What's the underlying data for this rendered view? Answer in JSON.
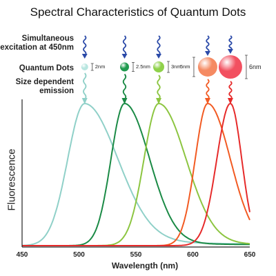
{
  "title": "Spectral Characteristics of Quantum Dots",
  "row_labels": {
    "excitation_line1": "Simultaneous",
    "excitation_line2": "excitation at 450nm",
    "quantum_dots": "Quantum Dots",
    "emission_line1": "Size dependent",
    "emission_line2": "emission"
  },
  "axis": {
    "ylabel": "Fluorescence",
    "xlabel": "Wavelength (nm)",
    "xlim": [
      450,
      650
    ]
  },
  "chart_data": {
    "type": "line",
    "title": "Spectral Characteristics of Quantum Dots",
    "xlabel": "Wavelength (nm)",
    "ylabel": "Fluorescence",
    "xlim": [
      450,
      650
    ],
    "ylim": [
      0,
      1
    ],
    "grid": false,
    "xticks": [
      450,
      500,
      550,
      600,
      650
    ],
    "series": [
      {
        "name": "2nm",
        "size_label": "2nm",
        "peak": 505,
        "width_left": 15,
        "width_right": 29,
        "floor": 0.04,
        "color": "#8fd0c8",
        "start": 450
      },
      {
        "name": "2.5nm",
        "size_label": "2.5nm",
        "peak": 540,
        "width_left": 12,
        "width_right": 22,
        "floor": 0.02,
        "color": "#1a8a45",
        "start": 450
      },
      {
        "name": "3nm",
        "size_label": "3nm",
        "peak": 570,
        "width_left": 13,
        "width_right": 24,
        "floor": 0.02,
        "color": "#8cc540",
        "start": 450
      },
      {
        "name": "5nm",
        "size_label": "5nm",
        "peak": 613,
        "width_left": 11,
        "width_right": 20,
        "floor": 0.0,
        "color": "#f25a22",
        "start": 450
      },
      {
        "name": "6nm",
        "size_label": "6nm",
        "peak": 633,
        "width_left": 12,
        "width_right": 10,
        "floor": 0.0,
        "color": "#e62a2a",
        "start": 450
      }
    ]
  },
  "dots": [
    {
      "name": "2nm",
      "size_label": "2nm",
      "color": "#b8e6e0"
    },
    {
      "name": "2.5nm",
      "size_label": "2.5nm",
      "color": "#1f9a4e"
    },
    {
      "name": "3nm",
      "size_label": "3nm",
      "color": "#8fd14a"
    },
    {
      "name": "5nm",
      "size_label": "5nm",
      "color": "#f58a62"
    },
    {
      "name": "6nm",
      "size_label": "6nm",
      "color": "#f25060"
    }
  ],
  "colors": {
    "excitation_arrow": "#2b4aa8",
    "axis": "#222222"
  }
}
